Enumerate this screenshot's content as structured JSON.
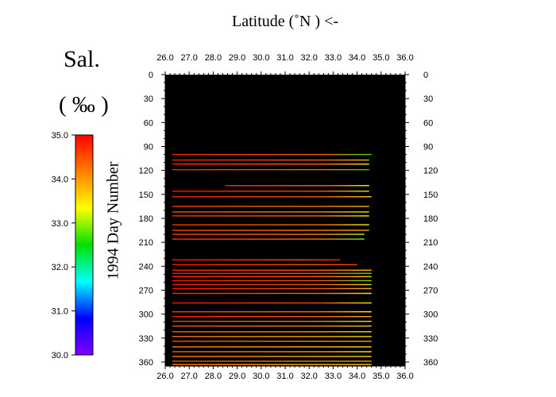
{
  "title": "Latitude (˚N ) <-",
  "colorbar": {
    "title": "Sal.",
    "unit": "( ‰ )",
    "min": 30.0,
    "max": 35.0,
    "ticks": [
      "35.0",
      "34.0",
      "33.0",
      "32.0",
      "31.0",
      "30.0"
    ],
    "colors": [
      "#ff0000",
      "#ff8000",
      "#ffff00",
      "#00e000",
      "#00ffff",
      "#0000ff",
      "#8000ff"
    ]
  },
  "chart_data": {
    "type": "heatmap",
    "xlabel": "Latitude (˚N ) <-",
    "ylabel": "1994  Day Number",
    "xlim": [
      26.0,
      36.0
    ],
    "ylim": [
      0,
      365
    ],
    "y_inverted": true,
    "background": "#000000",
    "xticks": [
      "26.0",
      "27.0",
      "28.0",
      "29.0",
      "30.0",
      "31.0",
      "32.0",
      "33.0",
      "34.0",
      "35.0",
      "36.0"
    ],
    "yticks": [
      "0",
      "30",
      "60",
      "90",
      "120",
      "150",
      "180",
      "210",
      "240",
      "270",
      "300",
      "330",
      "360"
    ],
    "transects": [
      {
        "day": 100,
        "lat_start": 26.3,
        "lat_end": 34.6,
        "sal_start": 34.8,
        "sal_end": 32.7
      },
      {
        "day": 107,
        "lat_start": 26.3,
        "lat_end": 34.5,
        "sal_start": 34.8,
        "sal_end": 33.8
      },
      {
        "day": 112,
        "lat_start": 26.3,
        "lat_end": 34.5,
        "sal_start": 34.8,
        "sal_end": 33.5
      },
      {
        "day": 119,
        "lat_start": 26.3,
        "lat_end": 34.5,
        "sal_start": 34.8,
        "sal_end": 32.6
      },
      {
        "day": 139,
        "lat_start": 28.5,
        "lat_end": 34.5,
        "sal_start": 34.8,
        "sal_end": 33.5
      },
      {
        "day": 146,
        "lat_start": 26.3,
        "lat_end": 34.5,
        "sal_start": 34.9,
        "sal_end": 33.2
      },
      {
        "day": 153,
        "lat_start": 26.3,
        "lat_end": 34.6,
        "sal_start": 34.8,
        "sal_end": 33.6
      },
      {
        "day": 165,
        "lat_start": 26.3,
        "lat_end": 34.5,
        "sal_start": 34.6,
        "sal_end": 33.8
      },
      {
        "day": 172,
        "lat_start": 26.3,
        "lat_end": 34.5,
        "sal_start": 34.5,
        "sal_end": 33.5
      },
      {
        "day": 177,
        "lat_start": 26.3,
        "lat_end": 34.5,
        "sal_start": 34.7,
        "sal_end": 33.3
      },
      {
        "day": 188,
        "lat_start": 26.3,
        "lat_end": 34.5,
        "sal_start": 34.7,
        "sal_end": 33.4
      },
      {
        "day": 195,
        "lat_start": 26.3,
        "lat_end": 34.5,
        "sal_start": 34.6,
        "sal_end": 33.9
      },
      {
        "day": 200,
        "lat_start": 26.3,
        "lat_end": 34.3,
        "sal_start": 34.6,
        "sal_end": 33.2
      },
      {
        "day": 206,
        "lat_start": 26.3,
        "lat_end": 34.3,
        "sal_start": 34.8,
        "sal_end": 32.8
      },
      {
        "day": 232,
        "lat_start": 26.3,
        "lat_end": 33.3,
        "sal_start": 34.9,
        "sal_end": 34.8
      },
      {
        "day": 238,
        "lat_start": 26.3,
        "lat_end": 34.0,
        "sal_start": 34.9,
        "sal_end": 34.6
      },
      {
        "day": 245,
        "lat_start": 26.3,
        "lat_end": 34.6,
        "sal_start": 34.8,
        "sal_end": 33.7
      },
      {
        "day": 249,
        "lat_start": 26.3,
        "lat_end": 34.6,
        "sal_start": 34.9,
        "sal_end": 32.7
      },
      {
        "day": 253,
        "lat_start": 26.3,
        "lat_end": 34.6,
        "sal_start": 34.8,
        "sal_end": 33.8
      },
      {
        "day": 258,
        "lat_start": 26.3,
        "lat_end": 34.6,
        "sal_start": 34.9,
        "sal_end": 32.8
      },
      {
        "day": 263,
        "lat_start": 26.3,
        "lat_end": 34.6,
        "sal_start": 34.8,
        "sal_end": 33.6
      },
      {
        "day": 268,
        "lat_start": 26.3,
        "lat_end": 34.6,
        "sal_start": 34.9,
        "sal_end": 33.8
      },
      {
        "day": 274,
        "lat_start": 26.3,
        "lat_end": 34.6,
        "sal_start": 34.8,
        "sal_end": 33.5
      },
      {
        "day": 286,
        "lat_start": 26.3,
        "lat_end": 34.6,
        "sal_start": 34.9,
        "sal_end": 33.3
      },
      {
        "day": 297,
        "lat_start": 26.3,
        "lat_end": 34.6,
        "sal_start": 34.7,
        "sal_end": 33.4
      },
      {
        "day": 303,
        "lat_start": 26.3,
        "lat_end": 34.6,
        "sal_start": 34.8,
        "sal_end": 33.8
      },
      {
        "day": 309,
        "lat_start": 26.3,
        "lat_end": 34.6,
        "sal_start": 34.6,
        "sal_end": 33.5
      },
      {
        "day": 315,
        "lat_start": 26.3,
        "lat_end": 34.6,
        "sal_start": 34.5,
        "sal_end": 33.7
      },
      {
        "day": 322,
        "lat_start": 26.3,
        "lat_end": 34.6,
        "sal_start": 34.4,
        "sal_end": 33.2
      },
      {
        "day": 328,
        "lat_start": 26.3,
        "lat_end": 34.6,
        "sal_start": 34.3,
        "sal_end": 33.6
      },
      {
        "day": 334,
        "lat_start": 26.3,
        "lat_end": 34.6,
        "sal_start": 34.5,
        "sal_end": 33.9
      },
      {
        "day": 341,
        "lat_start": 26.3,
        "lat_end": 34.6,
        "sal_start": 34.3,
        "sal_end": 33.7
      },
      {
        "day": 347,
        "lat_start": 26.3,
        "lat_end": 34.6,
        "sal_start": 34.4,
        "sal_end": 33.4
      },
      {
        "day": 353,
        "lat_start": 26.3,
        "lat_end": 34.6,
        "sal_start": 34.2,
        "sal_end": 33.6
      },
      {
        "day": 359,
        "lat_start": 26.3,
        "lat_end": 34.6,
        "sal_start": 34.5,
        "sal_end": 33.9
      },
      {
        "day": 363,
        "lat_start": 26.3,
        "lat_end": 34.6,
        "sal_start": 34.3,
        "sal_end": 33.8
      }
    ]
  }
}
